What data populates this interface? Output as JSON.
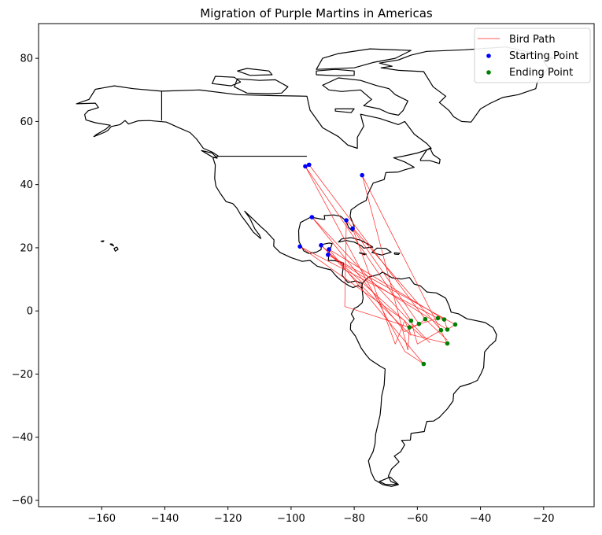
{
  "chart_data": {
    "type": "scatter",
    "title": "Migration of Purple Martins in Americas",
    "xlabel": "",
    "ylabel": "",
    "xlim": [
      -180,
      -4
    ],
    "ylim": [
      -62,
      91
    ],
    "xticks": [
      -160,
      -140,
      -120,
      -100,
      -80,
      -60,
      -40,
      -20
    ],
    "yticks": [
      -60,
      -40,
      -20,
      0,
      20,
      40,
      60,
      80
    ],
    "grid": false,
    "legend_position": "top-right",
    "colors": {
      "path": "#ff2020",
      "start": "#0000ff",
      "end": "#008000",
      "land": "#000000"
    },
    "series": [
      {
        "name": "Bird Path",
        "kind": "line"
      },
      {
        "name": "Starting Point",
        "kind": "point",
        "points": [
          [
            -95.5,
            45.8
          ],
          [
            -94.3,
            46.3
          ],
          [
            -77.5,
            43
          ],
          [
            -93.4,
            29.7
          ],
          [
            -82.5,
            28.7
          ],
          [
            -80.5,
            26.1
          ],
          [
            -97.2,
            20.4
          ],
          [
            -90.5,
            20.8
          ],
          [
            -88,
            19.5
          ],
          [
            -88.3,
            17.8
          ]
        ]
      },
      {
        "name": "Ending Point",
        "kind": "point",
        "points": [
          [
            -62.5,
            -5.2
          ],
          [
            -59.5,
            -4.1
          ],
          [
            -57.5,
            -2.6
          ],
          [
            -53.5,
            -2.3
          ],
          [
            -51.5,
            -2.7
          ],
          [
            -48,
            -4.3
          ],
          [
            -50.5,
            -5.9
          ],
          [
            -52.5,
            -6.1
          ],
          [
            -50.5,
            -10.3
          ],
          [
            -58,
            -16.8
          ],
          [
            -62,
            -3.1
          ]
        ]
      }
    ],
    "paths": [
      [
        [
          -95.5,
          45.8
        ],
        [
          -62,
          -3.1
        ]
      ],
      [
        [
          -95.5,
          45.8
        ],
        [
          -64,
          -12.8
        ]
      ],
      [
        [
          -94.3,
          46.3
        ],
        [
          -57.5,
          -2.6
        ]
      ],
      [
        [
          -77.5,
          43
        ],
        [
          -63,
          -12.4
        ]
      ],
      [
        [
          -77.5,
          43
        ],
        [
          -50.5,
          -10.3
        ]
      ],
      [
        [
          -93.4,
          29.7
        ],
        [
          -56,
          -10.1
        ]
      ],
      [
        [
          -93.4,
          29.7
        ],
        [
          -64,
          -6.6
        ]
      ],
      [
        [
          -82.5,
          28.7
        ],
        [
          -52.5,
          -6.1
        ]
      ],
      [
        [
          -82.5,
          28.7
        ],
        [
          -83,
          1.4
        ]
      ],
      [
        [
          -83,
          1.4
        ],
        [
          -62.5,
          -5.2
        ]
      ],
      [
        [
          -80.5,
          26.1
        ],
        [
          -59.5,
          -4.1
        ]
      ],
      [
        [
          -80.5,
          26.1
        ],
        [
          -67,
          -10.5
        ]
      ],
      [
        [
          -97.2,
          20.4
        ],
        [
          -64,
          -3.1
        ]
      ],
      [
        [
          -97.2,
          20.4
        ],
        [
          -53.5,
          -2.3
        ]
      ],
      [
        [
          -90.5,
          20.8
        ],
        [
          -57.8,
          -8.8
        ]
      ],
      [
        [
          -90.5,
          20.8
        ],
        [
          -62,
          -7.8
        ]
      ],
      [
        [
          -88,
          19.5
        ],
        [
          -51.5,
          -2.7
        ]
      ],
      [
        [
          -88,
          19.5
        ],
        [
          -58,
          -16.8
        ]
      ],
      [
        [
          -88.3,
          17.8
        ],
        [
          -48,
          -4.3
        ]
      ],
      [
        [
          -88.3,
          17.8
        ],
        [
          -50.5,
          -5.9
        ]
      ],
      [
        [
          -64,
          -3.1
        ],
        [
          -62,
          -7.5
        ]
      ],
      [
        [
          -62,
          -7.5
        ],
        [
          -56,
          -9
        ]
      ],
      [
        [
          -56,
          -9
        ],
        [
          -50.5,
          -10.3
        ]
      ],
      [
        [
          -59.5,
          -4.1
        ],
        [
          -57.5,
          -2.6
        ]
      ],
      [
        [
          -57.5,
          -2.6
        ],
        [
          -50.5,
          -9.3
        ]
      ],
      [
        [
          -62.5,
          -5.2
        ],
        [
          -53.5,
          -2.3
        ]
      ],
      [
        [
          -53.5,
          -2.3
        ],
        [
          -51.5,
          -2.7
        ]
      ],
      [
        [
          -51.5,
          -2.7
        ],
        [
          -50.5,
          -5.9
        ]
      ],
      [
        [
          -50.5,
          -5.9
        ],
        [
          -48,
          -4.3
        ]
      ],
      [
        [
          -62,
          -3.1
        ],
        [
          -60,
          -10.5
        ]
      ],
      [
        [
          -60,
          -10.5
        ],
        [
          -52.5,
          -6.1
        ]
      ],
      [
        [
          -64,
          -12.8
        ],
        [
          -58,
          -16.8
        ]
      ],
      [
        [
          -63,
          -12.4
        ],
        [
          -62.5,
          -5.2
        ]
      ],
      [
        [
          -67,
          -10.5
        ],
        [
          -64,
          -3.1
        ]
      ],
      [
        [
          -64,
          -6.6
        ],
        [
          -59.5,
          -4.1
        ]
      ]
    ]
  }
}
